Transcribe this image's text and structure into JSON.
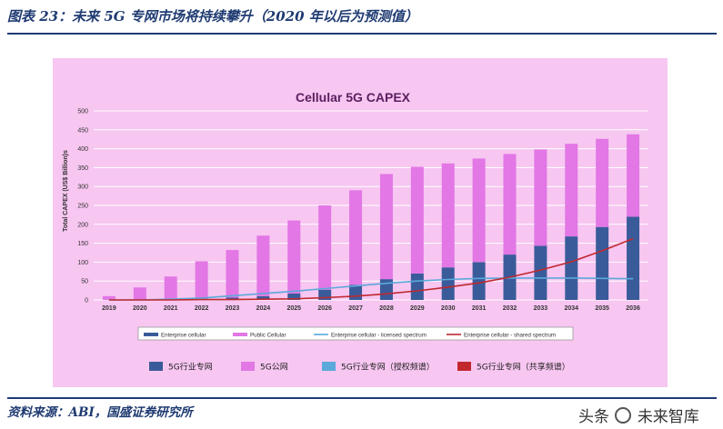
{
  "figure": {
    "title": "图表 23：未来 5G 专网市场将持续攀升（2020 年以后为预测值）",
    "source": "资料来源：ABI，国盛证券研究所",
    "watermark_left": "头条",
    "watermark_right": "未来智库"
  },
  "colors": {
    "panel_bg": "#f7c6f1",
    "enterprise": "#3a5b9a",
    "public": "#e277e5",
    "licensed": "#5aa9da",
    "shared": "#c0282e",
    "title_navy": "#1f3b72"
  },
  "chart_data": {
    "type": "bar",
    "title": "Cellular 5G CAPEX",
    "ylabel": "Total CAPEX (US$ Billion)s",
    "xlabel": "",
    "ylim": [
      0,
      500
    ],
    "yticks": [
      0,
      50,
      100,
      150,
      200,
      250,
      300,
      350,
      400,
      450,
      500
    ],
    "grid": true,
    "stacked": true,
    "categories": [
      "2019",
      "2020",
      "2021",
      "2022",
      "2023",
      "2024",
      "2025",
      "2026",
      "2027",
      "2028",
      "2029",
      "2030",
      "2031",
      "2032",
      "2033",
      "2034",
      "2035",
      "2036"
    ],
    "series": [
      {
        "name": "Enterprise cellular",
        "kind": "bar",
        "color": "#3a5b9a",
        "values": [
          0,
          0,
          1,
          3,
          6,
          10,
          17,
          27,
          40,
          55,
          70,
          86,
          100,
          120,
          143,
          168,
          193,
          220
        ]
      },
      {
        "name": "Public Cellular",
        "kind": "bar",
        "color": "#e277e5",
        "values": [
          10,
          33,
          61,
          99,
          126,
          160,
          193,
          223,
          250,
          278,
          282,
          275,
          274,
          266,
          255,
          245,
          233,
          218
        ]
      },
      {
        "name": "Enterprise cellular - licensed spectrum",
        "kind": "line",
        "color": "#5aa9da",
        "values": [
          0,
          0,
          2,
          5,
          11,
          17,
          23,
          30,
          37,
          44,
          50,
          54,
          57,
          58,
          58,
          58,
          57,
          56
        ]
      },
      {
        "name": "Enterprise cellular - shared spectrum",
        "kind": "line",
        "color": "#c0282e",
        "values": [
          0,
          0,
          0,
          1,
          1,
          2,
          3,
          6,
          10,
          16,
          24,
          34,
          45,
          60,
          79,
          101,
          130,
          162
        ]
      }
    ],
    "legend_position": "bottom",
    "legend_cn": [
      "5G行业专网",
      "5G公网",
      "5G行业专网（授权频谱）",
      "5G行业专网（共享频谱）"
    ]
  }
}
